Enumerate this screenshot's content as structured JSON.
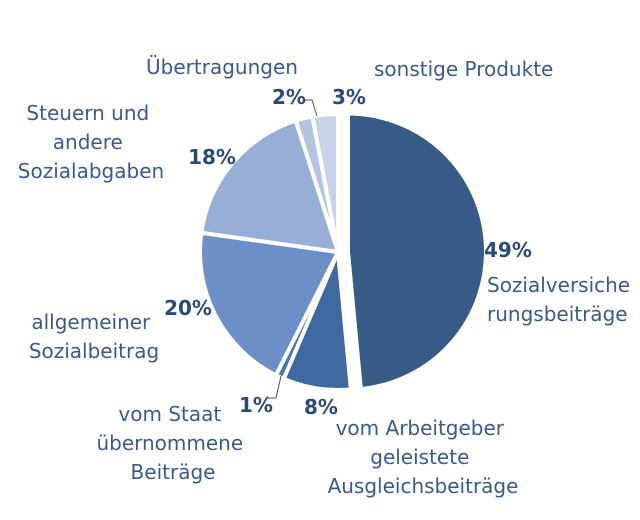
{
  "chart_data": {
    "type": "pie",
    "title": "",
    "start_angle_deg": 0,
    "direction": "clockwise",
    "slices": [
      {
        "label": "Sozialversiche rungsbeiträge",
        "value": 49,
        "value_label": "49%",
        "color": "#375a87",
        "exploded": true
      },
      {
        "label": "vom Arbeitgeber geleistete Ausgleichsbeiträge",
        "value": 8,
        "value_label": "8%",
        "color": "#3f67a0",
        "exploded": false
      },
      {
        "label": "vom Staat übernommene Beiträge",
        "value": 1,
        "value_label": "1%",
        "color": "#4d76ae",
        "exploded": false
      },
      {
        "label": "allgemeiner Sozialbeitrag",
        "value": 20,
        "value_label": "20%",
        "color": "#6b8fc6",
        "exploded": false
      },
      {
        "label": "Steuern und andere Sozialabgaben",
        "value": 18,
        "value_label": "18%",
        "color": "#97aed6",
        "exploded": false
      },
      {
        "label": "Übertragungen",
        "value": 2,
        "value_label": "2%",
        "color": "#b3c3e1",
        "exploded": false
      },
      {
        "label": "sonstige Produkte",
        "value": 3,
        "value_label": "3%",
        "color": "#c8d3ea",
        "exploded": false
      }
    ]
  }
}
